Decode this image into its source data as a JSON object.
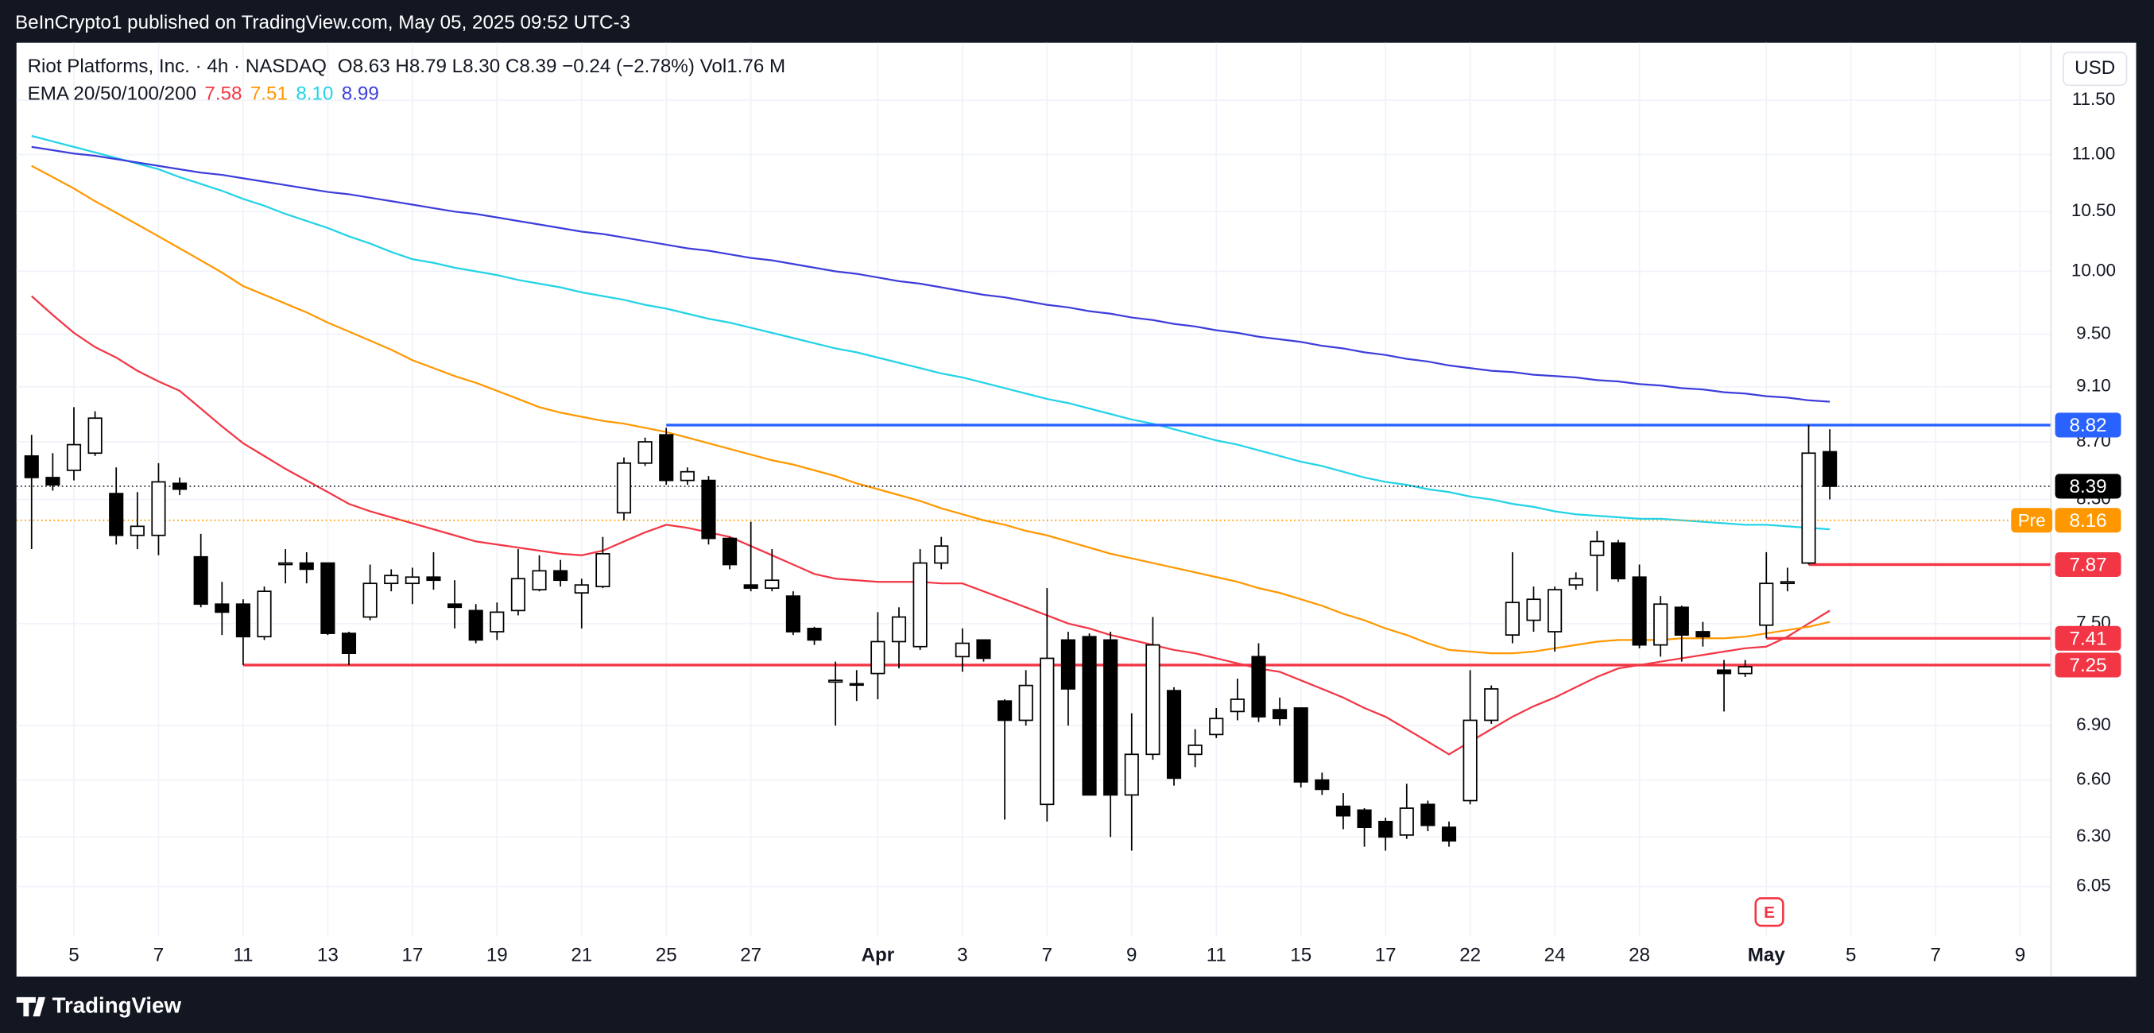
{
  "header": {
    "published": "BeInCrypto1 published on TradingView.com, May 05, 2025 09:52 UTC-3"
  },
  "footer": {
    "brand": "TradingView"
  },
  "chart_data": {
    "type": "candlestick",
    "symbol": "Riot Platforms, Inc. · 4h · NASDAQ",
    "quote": "O8.63  H8.79  L8.30  C8.39  −0.24 (−2.78%)  Vol1.76 M",
    "currency": "USD",
    "earnings_marker": "E",
    "log_scale": true,
    "grid": true,
    "up_color": "#ffffff",
    "down_color": "#000000",
    "ylim": [
      5.82,
      12.04
    ],
    "yticks": [
      {
        "value": 11.5,
        "label": "11.50"
      },
      {
        "value": 11,
        "label": "11.00"
      },
      {
        "value": 10.5,
        "label": "10.50"
      },
      {
        "value": 10,
        "label": "10.00"
      },
      {
        "value": 9.5,
        "label": "9.50"
      },
      {
        "value": 9.1,
        "label": "9.10"
      },
      {
        "value": 8.7,
        "label": "8.70"
      },
      {
        "value": 8.3,
        "label": "8.30"
      },
      {
        "value": 7.5,
        "label": "7.50"
      },
      {
        "value": 6.9,
        "label": "6.90"
      },
      {
        "value": 6.6,
        "label": "6.60"
      },
      {
        "value": 6.3,
        "label": "6.30"
      },
      {
        "value": 6.05,
        "label": "6.05"
      }
    ],
    "categories": [
      null,
      null,
      "5",
      null,
      null,
      null,
      "7",
      null,
      null,
      null,
      "11",
      null,
      null,
      null,
      "13",
      null,
      null,
      null,
      "17",
      null,
      null,
      null,
      "19",
      null,
      null,
      null,
      "21",
      null,
      null,
      null,
      "25",
      null,
      null,
      null,
      "27",
      null,
      null,
      null,
      null,
      null,
      "Apr",
      null,
      null,
      null,
      "3",
      null,
      null,
      null,
      "7",
      null,
      null,
      null,
      "9",
      null,
      null,
      null,
      "11",
      null,
      null,
      null,
      "15",
      null,
      null,
      null,
      "17",
      null,
      null,
      null,
      "22",
      null,
      null,
      null,
      "24",
      null,
      null,
      null,
      "28",
      null,
      null,
      null,
      null,
      null,
      "May",
      null,
      null,
      null,
      "5",
      null,
      null,
      null,
      "7",
      null,
      null,
      null,
      "9",
      null
    ],
    "open": [
      8.6,
      8.45,
      8.5,
      8.62,
      8.34,
      8.06,
      8.06,
      8.41,
      7.92,
      7.62,
      7.62,
      7.42,
      7.87,
      7.88,
      7.88,
      7.44,
      7.54,
      7.75,
      7.75,
      7.79,
      7.62,
      7.58,
      7.45,
      7.58,
      7.71,
      7.83,
      7.69,
      7.73,
      8.21,
      8.55,
      8.75,
      8.43,
      8.43,
      8.04,
      7.74,
      7.72,
      7.67,
      7.47,
      7.15,
      7.14,
      7.2,
      7.39,
      7.36,
      7.88,
      7.3,
      7.4,
      7.04,
      6.93,
      6.47,
      7.4,
      7.42,
      7.4,
      6.52,
      6.74,
      7.1,
      6.74,
      6.85,
      6.98,
      7.3,
      6.99,
      7.0,
      6.6,
      6.46,
      6.44,
      6.38,
      6.31,
      6.47,
      6.35,
      6.49,
      6.93,
      7.43,
      7.52,
      7.45,
      7.74,
      7.93,
      8.01,
      7.79,
      7.37,
      7.6,
      7.45,
      7.22,
      7.2,
      7.49,
      7.75,
      7.88,
      8.63,
      null,
      null,
      null,
      null,
      null,
      null,
      null,
      null,
      null,
      null
    ],
    "high": [
      8.75,
      8.62,
      8.95,
      8.92,
      8.52,
      8.35,
      8.55,
      8.45,
      8.07,
      7.76,
      7.65,
      7.73,
      7.97,
      7.95,
      7.88,
      7.45,
      7.87,
      7.84,
      7.85,
      7.95,
      7.77,
      7.62,
      7.63,
      7.97,
      7.93,
      7.9,
      7.78,
      8.05,
      8.59,
      8.73,
      8.8,
      8.52,
      8.46,
      8.05,
      8.15,
      7.97,
      7.7,
      7.48,
      7.27,
      7.22,
      7.57,
      7.6,
      7.97,
      8.05,
      7.47,
      7.4,
      7.05,
      7.22,
      7.72,
      7.45,
      7.44,
      7.45,
      6.97,
      7.54,
      7.12,
      6.88,
      7.0,
      7.17,
      7.38,
      7.06,
      7.0,
      6.64,
      6.53,
      6.45,
      6.4,
      6.58,
      6.49,
      6.38,
      7.22,
      7.13,
      7.95,
      7.73,
      7.73,
      7.82,
      8.09,
      8.03,
      7.87,
      7.67,
      7.61,
      7.51,
      7.28,
      7.28,
      7.95,
      7.85,
      8.82,
      8.79,
      null,
      null,
      null,
      null,
      null,
      null,
      null,
      null,
      null,
      null
    ],
    "low": [
      7.97,
      8.36,
      8.43,
      8.6,
      8.0,
      7.97,
      7.93,
      8.33,
      7.6,
      7.43,
      7.25,
      7.4,
      7.75,
      7.75,
      7.43,
      7.25,
      7.52,
      7.7,
      7.62,
      7.71,
      7.47,
      7.38,
      7.4,
      7.55,
      7.7,
      7.73,
      7.47,
      7.72,
      8.16,
      8.53,
      8.4,
      8.4,
      8.0,
      7.84,
      7.7,
      7.7,
      7.43,
      7.37,
      6.9,
      7.04,
      7.05,
      7.23,
      7.34,
      7.84,
      7.21,
      7.27,
      6.39,
      6.9,
      6.38,
      6.9,
      6.52,
      6.3,
      6.23,
      6.71,
      6.57,
      6.67,
      6.83,
      6.93,
      6.92,
      6.9,
      6.56,
      6.52,
      6.34,
      6.25,
      6.23,
      6.29,
      6.33,
      6.25,
      6.47,
      6.91,
      7.38,
      7.45,
      7.33,
      7.71,
      7.7,
      7.76,
      7.35,
      7.3,
      7.27,
      7.36,
      6.98,
      7.18,
      7.41,
      7.7,
      7.87,
      8.3,
      null,
      null,
      null,
      null,
      null,
      null,
      null,
      null,
      null,
      null
    ],
    "close": [
      8.45,
      8.4,
      8.68,
      8.87,
      8.06,
      8.12,
      8.42,
      8.37,
      7.62,
      7.57,
      7.42,
      7.7,
      7.88,
      7.84,
      7.44,
      7.32,
      7.75,
      7.8,
      7.79,
      7.77,
      7.6,
      7.4,
      7.57,
      7.78,
      7.83,
      7.77,
      7.74,
      7.94,
      8.55,
      8.7,
      8.43,
      8.49,
      8.04,
      7.87,
      7.72,
      7.77,
      7.45,
      7.4,
      7.16,
      7.14,
      7.39,
      7.54,
      7.88,
      7.99,
      7.38,
      7.29,
      6.93,
      7.13,
      7.29,
      7.11,
      6.52,
      6.52,
      6.74,
      7.37,
      6.61,
      6.79,
      6.94,
      7.05,
      6.95,
      6.94,
      6.59,
      6.55,
      6.41,
      6.35,
      6.3,
      6.45,
      6.36,
      6.28,
      6.93,
      7.11,
      7.63,
      7.65,
      7.71,
      7.78,
      8.02,
      7.78,
      7.37,
      7.62,
      7.43,
      7.42,
      7.2,
      7.24,
      7.75,
      7.76,
      8.62,
      8.39,
      null,
      null,
      null,
      null,
      null,
      null,
      null,
      null,
      null,
      null
    ],
    "indicator": "EMA 20/50/100/200",
    "series": [
      {
        "color": "#f23645",
        "last_label": "7.58",
        "values": [
          9.8,
          9.65,
          9.51,
          9.4,
          9.32,
          9.22,
          9.14,
          9.07,
          8.94,
          8.81,
          8.69,
          8.6,
          8.51,
          8.43,
          8.35,
          8.27,
          8.22,
          8.18,
          8.14,
          8.1,
          8.06,
          8.02,
          8.0,
          7.98,
          7.96,
          7.94,
          7.93,
          7.96,
          8.02,
          8.08,
          8.13,
          8.11,
          8.08,
          8.05,
          7.99,
          7.93,
          7.87,
          7.81,
          7.78,
          7.77,
          7.76,
          7.76,
          7.76,
          7.75,
          7.75,
          7.7,
          7.65,
          7.6,
          7.55,
          7.5,
          7.47,
          7.43,
          7.4,
          7.37,
          7.34,
          7.32,
          7.29,
          7.26,
          7.23,
          7.21,
          7.16,
          7.11,
          7.06,
          7.0,
          6.95,
          6.88,
          6.81,
          6.74,
          6.81,
          6.88,
          6.95,
          7.01,
          7.06,
          7.12,
          7.18,
          7.23,
          7.25,
          7.27,
          7.29,
          7.31,
          7.33,
          7.35,
          7.36,
          7.42,
          7.5,
          7.58,
          null,
          null,
          null,
          null,
          null,
          null,
          null,
          null,
          null,
          null
        ]
      },
      {
        "color": "#ff9800",
        "last_label": "7.51",
        "values": [
          10.9,
          10.8,
          10.7,
          10.59,
          10.49,
          10.39,
          10.29,
          10.19,
          10.09,
          9.99,
          9.88,
          9.81,
          9.74,
          9.67,
          9.59,
          9.52,
          9.45,
          9.38,
          9.3,
          9.24,
          9.18,
          9.13,
          9.07,
          9.01,
          8.95,
          8.91,
          8.88,
          8.85,
          8.83,
          8.8,
          8.77,
          8.73,
          8.69,
          8.65,
          8.61,
          8.57,
          8.54,
          8.5,
          8.46,
          8.41,
          8.37,
          8.33,
          8.29,
          8.24,
          8.2,
          8.16,
          8.13,
          8.09,
          8.06,
          8.02,
          7.98,
          7.94,
          7.91,
          7.88,
          7.85,
          7.82,
          7.79,
          7.76,
          7.72,
          7.69,
          7.65,
          7.61,
          7.56,
          7.52,
          7.47,
          7.43,
          7.38,
          7.34,
          7.33,
          7.32,
          7.32,
          7.33,
          7.35,
          7.37,
          7.39,
          7.4,
          7.4,
          7.4,
          7.41,
          7.41,
          7.41,
          7.42,
          7.44,
          7.46,
          7.48,
          7.51,
          null,
          null,
          null,
          null,
          null,
          null,
          null,
          null,
          null,
          null
        ]
      },
      {
        "color": "#22d3e6",
        "last_label": "8.10",
        "values": [
          11.17,
          11.12,
          11.07,
          11.02,
          10.97,
          10.92,
          10.87,
          10.8,
          10.74,
          10.68,
          10.61,
          10.55,
          10.48,
          10.42,
          10.36,
          10.29,
          10.23,
          10.16,
          10.1,
          10.07,
          10.03,
          10.0,
          9.97,
          9.93,
          9.9,
          9.87,
          9.83,
          9.8,
          9.77,
          9.73,
          9.7,
          9.66,
          9.62,
          9.59,
          9.55,
          9.51,
          9.47,
          9.43,
          9.39,
          9.36,
          9.32,
          9.28,
          9.24,
          9.2,
          9.17,
          9.13,
          9.09,
          9.05,
          9.01,
          8.98,
          8.94,
          8.9,
          8.86,
          8.83,
          8.79,
          8.75,
          8.71,
          8.68,
          8.64,
          8.6,
          8.56,
          8.53,
          8.49,
          8.45,
          8.42,
          8.4,
          8.37,
          8.35,
          8.32,
          8.3,
          8.27,
          8.25,
          8.22,
          8.2,
          8.19,
          8.18,
          8.17,
          8.17,
          8.16,
          8.15,
          8.14,
          8.13,
          8.13,
          8.12,
          8.11,
          8.1,
          null,
          null,
          null,
          null,
          null,
          null,
          null,
          null,
          null,
          null
        ]
      },
      {
        "color": "#3d3ddb",
        "last_label": "8.99",
        "values": [
          11.07,
          11.04,
          11.01,
          10.99,
          10.96,
          10.93,
          10.9,
          10.87,
          10.84,
          10.82,
          10.79,
          10.76,
          10.73,
          10.7,
          10.67,
          10.65,
          10.62,
          10.59,
          10.56,
          10.53,
          10.5,
          10.48,
          10.45,
          10.42,
          10.39,
          10.36,
          10.33,
          10.31,
          10.28,
          10.25,
          10.22,
          10.19,
          10.17,
          10.14,
          10.11,
          10.09,
          10.06,
          10.03,
          10.0,
          9.98,
          9.95,
          9.92,
          9.9,
          9.87,
          9.84,
          9.81,
          9.79,
          9.76,
          9.73,
          9.71,
          9.68,
          9.66,
          9.63,
          9.61,
          9.58,
          9.56,
          9.53,
          9.51,
          9.48,
          9.46,
          9.44,
          9.41,
          9.39,
          9.36,
          9.34,
          9.31,
          9.29,
          9.26,
          9.24,
          9.22,
          9.21,
          9.19,
          9.18,
          9.17,
          9.15,
          9.14,
          9.12,
          9.11,
          9.09,
          9.08,
          9.06,
          9.05,
          9.03,
          9.02,
          9.0,
          8.99,
          null,
          null,
          null,
          null,
          null,
          null,
          null,
          null,
          null,
          null
        ]
      }
    ],
    "levels": [
      {
        "value": 8.82,
        "color": "#2962ff"
      },
      {
        "value": 7.87,
        "color": "#f23645"
      },
      {
        "value": 7.41,
        "color": "#f23645"
      },
      {
        "value": 7.25,
        "color": "#f23645"
      }
    ],
    "last_price": 8.39,
    "premarket": {
      "label": "Pre",
      "value": 8.16,
      "color": "#ff9800"
    }
  }
}
